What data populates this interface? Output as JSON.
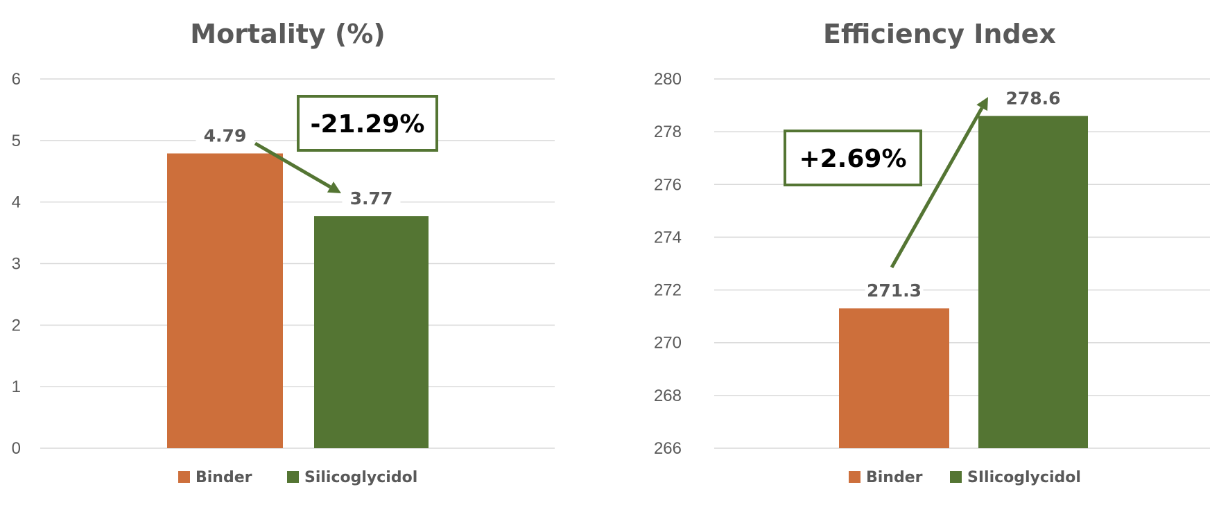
{
  "colors": {
    "binder": "#cd6f3b",
    "silicoglycidol": "#547533",
    "callout_border": "#547533",
    "arrow": "#547533",
    "text": "#595959",
    "grid": "#d9d9d9"
  },
  "chart_data": [
    {
      "type": "bar",
      "title": "Mortality (%)",
      "categories": [
        "Binder",
        "Silicoglycidol"
      ],
      "values": [
        4.79,
        3.77
      ],
      "value_labels": [
        "4.79",
        "3.77"
      ],
      "ylim": [
        0,
        6
      ],
      "yticks": [
        0,
        1,
        2,
        3,
        4,
        5,
        6
      ],
      "grid": true,
      "legend": [
        "Binder",
        "Silicoglycidol"
      ],
      "legend_position": "bottom",
      "annotation": "-21.29%"
    },
    {
      "type": "bar",
      "title": "Efficiency Index",
      "categories": [
        "Binder",
        "SIlicoglycidol"
      ],
      "values": [
        271.3,
        278.6
      ],
      "value_labels": [
        "271.3",
        "278.6"
      ],
      "ylim": [
        266,
        280
      ],
      "yticks": [
        266,
        268,
        270,
        272,
        274,
        276,
        278,
        280
      ],
      "grid": true,
      "legend": [
        "Binder",
        "SIlicoglycidol"
      ],
      "legend_position": "bottom",
      "annotation": "+2.69%"
    }
  ]
}
